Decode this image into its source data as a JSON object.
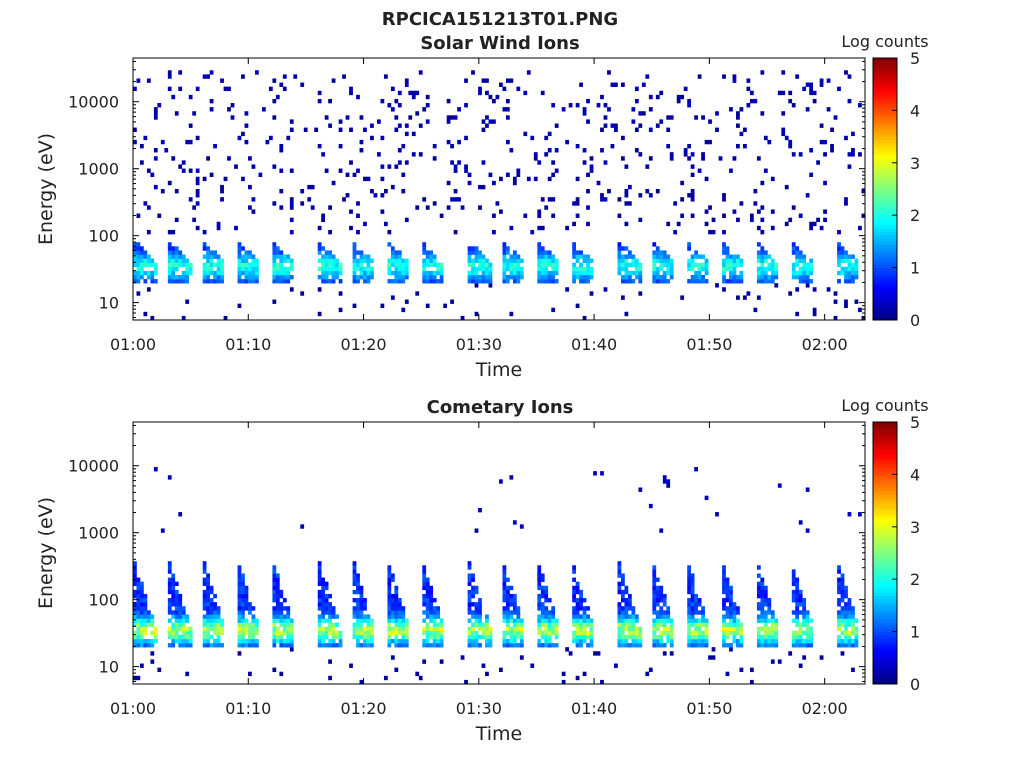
{
  "figure": {
    "suptitle": "RPCICA151213T01.PNG"
  },
  "colormap": {
    "name": "jet",
    "stops": [
      "#00007f",
      "#0000ff",
      "#007fff",
      "#00ffff",
      "#7fff7f",
      "#ffff00",
      "#ff7f00",
      "#ff0000",
      "#7f0000"
    ]
  },
  "chart_data": [
    {
      "type": "heatmap",
      "title": "Solar Wind Ions",
      "xlabel": "Time",
      "ylabel": "Energy (eV)",
      "yscale": "log",
      "ylim": [
        5.5,
        45000
      ],
      "xlim_minutes": [
        0,
        63.5
      ],
      "xticks": [
        "01:00",
        "01:10",
        "01:20",
        "01:30",
        "01:40",
        "01:50",
        "02:00"
      ],
      "yticks": [
        "10",
        "100",
        "1000",
        "10000"
      ],
      "colorbar": {
        "label": "Log counts",
        "min": 0,
        "max": 5,
        "ticks": [
          "0",
          "1",
          "2",
          "3",
          "4",
          "5"
        ]
      },
      "pulse_period_min": 3.2,
      "pulse_times": [
        "01:01",
        "01:04",
        "01:07",
        "01:10",
        "01:13",
        "01:17",
        "01:20",
        "01:23",
        "01:26",
        "01:30",
        "01:33",
        "01:36",
        "01:39",
        "01:43",
        "01:46",
        "01:49",
        "01:52",
        "01:55",
        "01:58",
        "02:02"
      ],
      "band": {
        "energy_low_eV": 20,
        "energy_high_eV": 80,
        "peak_energy_eV": 35,
        "peak_log_counts": 2.3
      },
      "background": {
        "energy_low_eV": 100,
        "energy_high_eV": 30000,
        "log_counts": 0.1,
        "density": 0.06
      }
    },
    {
      "type": "heatmap",
      "title": "Cometary Ions",
      "xlabel": "Time",
      "ylabel": "Energy (eV)",
      "yscale": "log",
      "ylim": [
        5.5,
        45000
      ],
      "xlim_minutes": [
        0,
        63.5
      ],
      "xticks": [
        "01:00",
        "01:10",
        "01:20",
        "01:30",
        "01:40",
        "01:50",
        "02:00"
      ],
      "yticks": [
        "10",
        "100",
        "1000",
        "10000"
      ],
      "colorbar": {
        "label": "Log counts",
        "min": 0,
        "max": 5,
        "ticks": [
          "0",
          "1",
          "2",
          "3",
          "4",
          "5"
        ]
      },
      "pulse_period_min": 3.2,
      "pulse_times": [
        "01:01",
        "01:04",
        "01:07",
        "01:10",
        "01:13",
        "01:17",
        "01:20",
        "01:23",
        "01:26",
        "01:30",
        "01:33",
        "01:36",
        "01:39",
        "01:43",
        "01:46",
        "01:49",
        "01:52",
        "01:55",
        "01:58",
        "02:02"
      ],
      "band": {
        "energy_low_eV": 20,
        "energy_high_eV": 400,
        "peak_energy_eV": 35,
        "peak_log_counts": 3.2
      },
      "background": {
        "energy_low_eV": 1000,
        "energy_high_eV": 10000,
        "log_counts": 0.2,
        "density": 0.008
      }
    }
  ]
}
